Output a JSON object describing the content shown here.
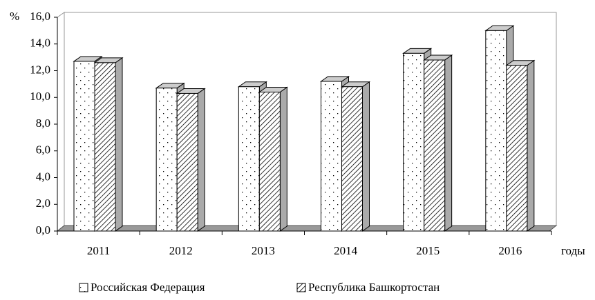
{
  "chart_data": {
    "type": "bar3d",
    "y_label": "%",
    "x_label": "годы",
    "categories": [
      "2011",
      "2012",
      "2013",
      "2014",
      "2015",
      "2016"
    ],
    "series": [
      {
        "name": "Российская Федерация",
        "color": "#ffffff",
        "pattern": "dots",
        "values": [
          12.7,
          10.7,
          10.8,
          11.2,
          13.3,
          15.0
        ]
      },
      {
        "name": "Республика Башкортостан",
        "color": "#ffffff",
        "pattern": "hatch",
        "values": [
          12.6,
          10.3,
          10.4,
          10.8,
          12.8,
          12.4
        ]
      }
    ],
    "ylim": [
      0,
      16
    ],
    "yticks": [
      {
        "value": 0,
        "label": "0,0"
      },
      {
        "value": 2,
        "label": "2,0"
      },
      {
        "value": 4,
        "label": "4,0"
      },
      {
        "value": 6,
        "label": "6,0"
      },
      {
        "value": 8,
        "label": "8,0"
      },
      {
        "value": 10,
        "label": "10,0"
      },
      {
        "value": 12,
        "label": "12,0"
      },
      {
        "value": 14,
        "label": "14,0"
      },
      {
        "value": 16,
        "label": "16,0"
      }
    ],
    "legend": "bottom"
  }
}
